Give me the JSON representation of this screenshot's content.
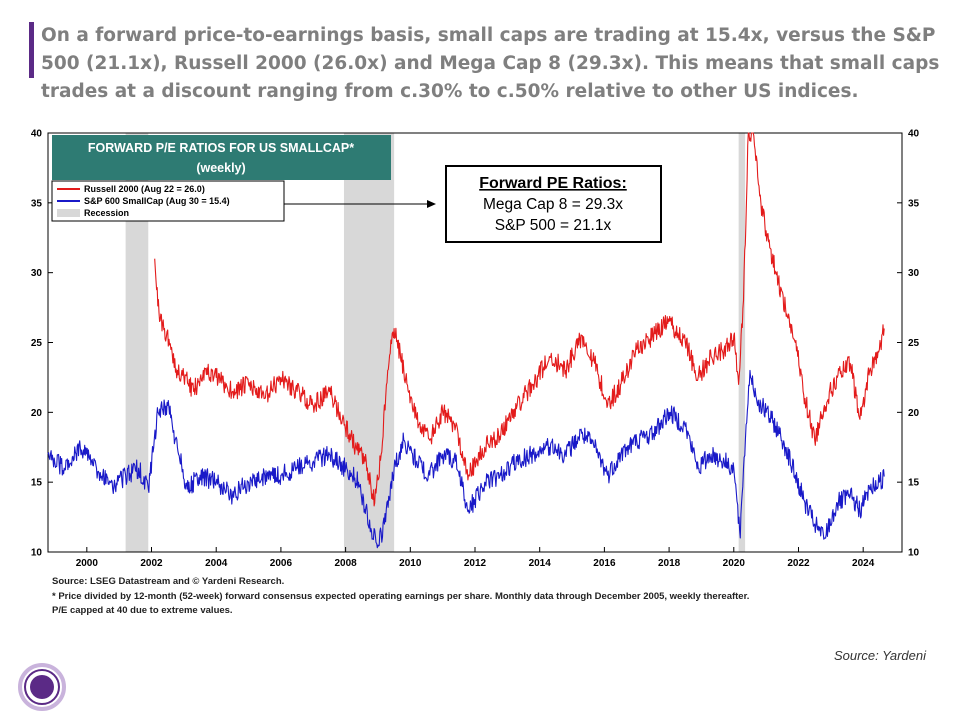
{
  "headline": "On a forward price-to-earnings basis, small caps are trading at 15.4x, versus the S&P 500 (21.1x), Russell 2000 (26.0x) and Mega Cap 8 (29.3x). This means that small caps trades at a discount ranging from c.30% to c.50% relative to other US indices.",
  "source_label": "Source:",
  "source_name": "Yardeni",
  "colors": {
    "accent": "#5b2a86",
    "headline": "#7f7f7f",
    "teal": "#2e7b73",
    "red": "#e31b1b",
    "blue": "#1919c8",
    "recession": "#d8d8d8"
  },
  "chart_data": {
    "type": "line",
    "title": "FORWARD P/E RATIOS FOR US SMALLCAP*",
    "subtitle": "(weekly)",
    "xlabel": "",
    "ylabel": "",
    "xlim": [
      1998.8,
      2025.2
    ],
    "ylim": [
      10,
      40
    ],
    "x_ticks": [
      "2000",
      "2002",
      "2004",
      "2006",
      "2008",
      "2010",
      "2012",
      "2014",
      "2016",
      "2018",
      "2020",
      "2022",
      "2024"
    ],
    "y_ticks": [
      "10",
      "15",
      "20",
      "25",
      "30",
      "35",
      "40"
    ],
    "legend_position": "top-left",
    "recessions": [
      [
        2001.2,
        2001.9
      ],
      [
        2007.95,
        2009.5
      ],
      [
        2020.15,
        2020.35
      ]
    ],
    "series": [
      {
        "name": "Russell 2000 (Aug 22 = 26.0)",
        "color": "#e31b1b",
        "x": [
          2002.1,
          2002.25,
          2002.4,
          2002.6,
          2002.8,
          2003.0,
          2003.3,
          2003.6,
          2004.0,
          2004.5,
          2005.0,
          2005.5,
          2006.0,
          2006.5,
          2007.0,
          2007.5,
          2007.9,
          2008.3,
          2008.6,
          2008.9,
          2009.1,
          2009.3,
          2009.5,
          2009.8,
          2010.2,
          2010.6,
          2011.0,
          2011.4,
          2011.8,
          2012.3,
          2012.8,
          2013.3,
          2013.8,
          2014.3,
          2014.8,
          2015.3,
          2015.7,
          2016.1,
          2016.5,
          2017.0,
          2017.5,
          2018.0,
          2018.5,
          2018.9,
          2019.3,
          2019.7,
          2020.0,
          2020.15,
          2020.3,
          2020.45,
          2020.6,
          2020.8,
          2021.0,
          2021.3,
          2021.6,
          2021.9,
          2022.2,
          2022.5,
          2022.8,
          2023.2,
          2023.6,
          2023.9,
          2024.2,
          2024.5,
          2024.65
        ],
        "values": [
          31.0,
          26.5,
          26.0,
          24.5,
          23.0,
          22.5,
          21.5,
          23.0,
          22.5,
          21.5,
          22.0,
          21.0,
          22.5,
          21.5,
          20.5,
          21.5,
          19.5,
          17.5,
          16.5,
          13.5,
          17.0,
          23.0,
          26.0,
          23.0,
          19.5,
          18.0,
          20.0,
          19.0,
          15.5,
          17.5,
          18.5,
          20.5,
          22.0,
          24.0,
          23.0,
          25.5,
          23.5,
          20.5,
          22.0,
          24.5,
          25.5,
          26.5,
          25.0,
          22.5,
          24.0,
          24.5,
          25.5,
          22.0,
          28.0,
          40.0,
          40.0,
          35.5,
          33.0,
          30.0,
          27.5,
          25.0,
          21.0,
          18.0,
          20.5,
          22.5,
          23.5,
          19.5,
          23.0,
          24.5,
          26.0
        ]
      },
      {
        "name": "S&P 600 SmallCap (Aug 30 = 15.4)",
        "color": "#1919c8",
        "x": [
          1998.8,
          1999.3,
          1999.8,
          2000.3,
          2000.8,
          2001.2,
          2001.6,
          2001.9,
          2002.2,
          2002.5,
          2002.8,
          2003.1,
          2003.5,
          2004.0,
          2004.5,
          2005.0,
          2005.5,
          2006.0,
          2006.5,
          2007.0,
          2007.5,
          2008.0,
          2008.4,
          2008.8,
          2009.0,
          2009.2,
          2009.5,
          2009.8,
          2010.2,
          2010.6,
          2011.0,
          2011.4,
          2011.8,
          2012.3,
          2012.8,
          2013.3,
          2013.8,
          2014.3,
          2014.8,
          2015.3,
          2015.7,
          2016.1,
          2016.5,
          2017.0,
          2017.5,
          2018.0,
          2018.5,
          2018.9,
          2019.3,
          2019.7,
          2020.0,
          2020.2,
          2020.3,
          2020.5,
          2020.7,
          2021.0,
          2021.3,
          2021.6,
          2021.9,
          2022.2,
          2022.5,
          2022.8,
          2023.2,
          2023.6,
          2023.9,
          2024.2,
          2024.5,
          2024.65
        ],
        "values": [
          17.0,
          16.0,
          17.5,
          16.0,
          14.5,
          15.5,
          16.0,
          14.5,
          20.0,
          20.5,
          17.5,
          14.5,
          15.5,
          15.0,
          14.0,
          15.0,
          15.5,
          15.5,
          16.0,
          16.5,
          17.0,
          16.0,
          15.0,
          11.5,
          10.5,
          12.0,
          16.0,
          18.0,
          16.5,
          15.5,
          17.0,
          16.5,
          13.0,
          15.0,
          15.5,
          16.5,
          17.0,
          17.5,
          17.0,
          18.5,
          17.5,
          15.5,
          17.0,
          18.0,
          18.5,
          20.0,
          19.0,
          16.0,
          17.0,
          16.5,
          16.0,
          11.0,
          16.0,
          23.0,
          21.0,
          20.0,
          19.0,
          17.5,
          15.5,
          13.5,
          12.0,
          11.0,
          13.5,
          14.0,
          13.0,
          14.5,
          15.0,
          15.4
        ]
      }
    ],
    "legend_recession": "Recession",
    "annotation": {
      "title": "Forward PE Ratios:",
      "lines": [
        "Mega Cap 8 = 29.3x",
        "S&P 500 = 21.1x"
      ]
    },
    "notes": [
      "Source: LSEG Datastream and © Yardeni Research.",
      "* Price divided by 12-month (52-week) forward consensus expected operating earnings per share. Monthly data through December 2005, weekly thereafter.",
      "P/E capped at 40 due to extreme values."
    ]
  }
}
